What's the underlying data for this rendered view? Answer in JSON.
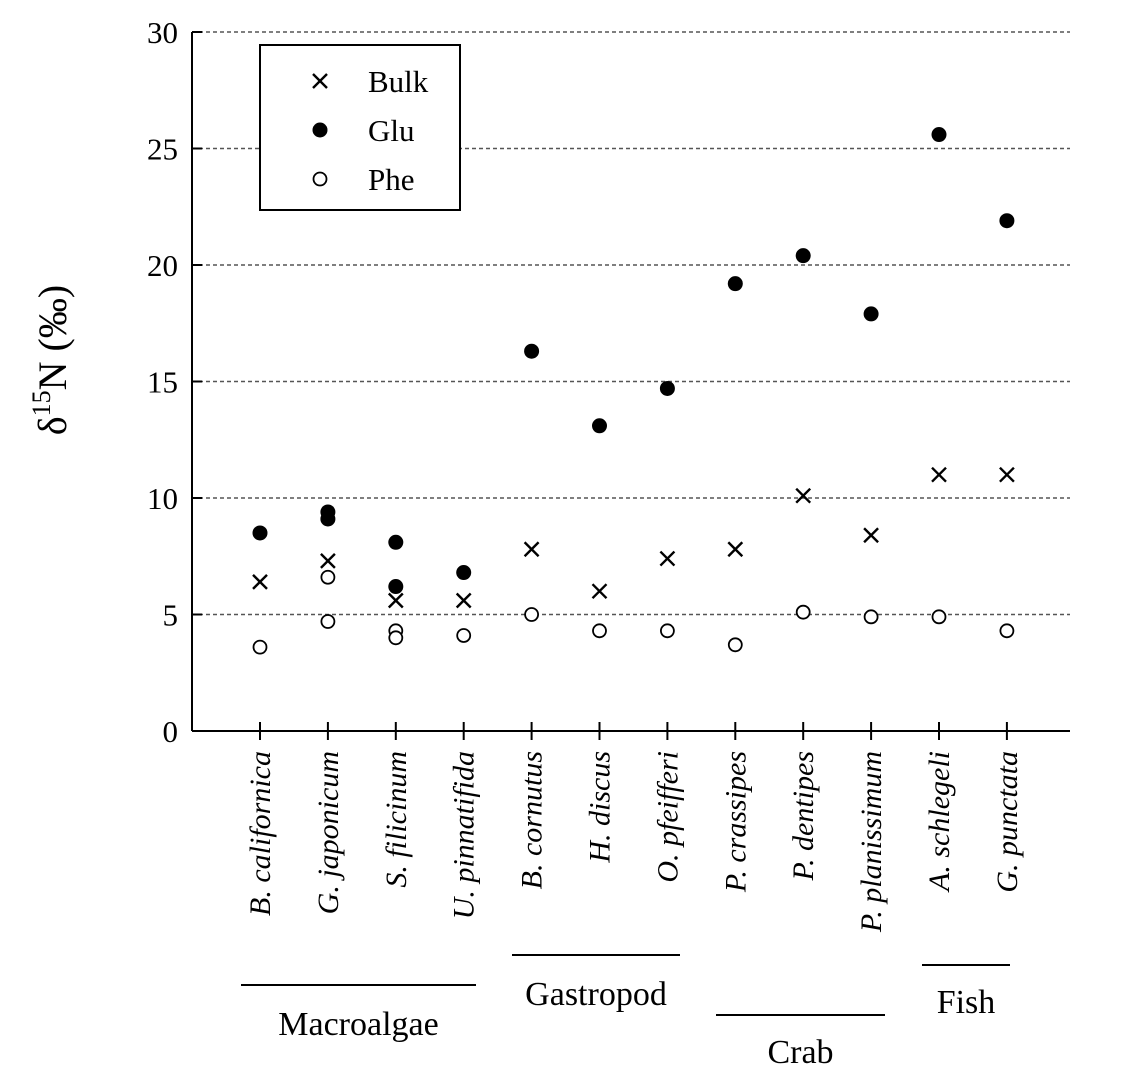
{
  "chart_data": {
    "type": "scatter",
    "ylabel": "δ15N (‰)",
    "ylabel_parts": {
      "base": "δ",
      "sup": "15",
      "rest": "N (‰)"
    },
    "ylim": [
      0,
      30
    ],
    "yticks": [
      0,
      5,
      10,
      15,
      20,
      25,
      30
    ],
    "grid": "horizontal dashed",
    "legend_position": "top-left",
    "categories": [
      "B. californica",
      "G. japonicum",
      "S. filicinum",
      "U. pinnatifida",
      "B. cornutus",
      "H. discus",
      "O. pfeifferi",
      "P. crassipes",
      "P. dentipes",
      "P. planissimum",
      "A. schlegeli",
      "G. punctata"
    ],
    "groups": [
      {
        "label": "Macroalgae",
        "from": 0,
        "to": 3
      },
      {
        "label": "Gastropod",
        "from": 4,
        "to": 6
      },
      {
        "label": "Crab",
        "from": 7,
        "to": 9
      },
      {
        "label": "Fish",
        "from": 10,
        "to": 11
      }
    ],
    "series": [
      {
        "name": "Bulk",
        "marker": "cross",
        "points": [
          [
            0,
            6.4
          ],
          [
            1,
            7.3
          ],
          [
            2,
            5.6
          ],
          [
            3,
            5.6
          ],
          [
            4,
            7.8
          ],
          [
            5,
            6.0
          ],
          [
            6,
            7.4
          ],
          [
            7,
            7.8
          ],
          [
            8,
            10.1
          ],
          [
            9,
            8.4
          ],
          [
            10,
            11.0
          ],
          [
            11,
            11.0
          ]
        ]
      },
      {
        "name": "Glu",
        "marker": "filled-circle",
        "points": [
          [
            0,
            8.5
          ],
          [
            1,
            9.4
          ],
          [
            1,
            9.1
          ],
          [
            2,
            8.1
          ],
          [
            2,
            6.2
          ],
          [
            3,
            6.8
          ],
          [
            4,
            16.3
          ],
          [
            5,
            13.1
          ],
          [
            6,
            14.7
          ],
          [
            7,
            19.2
          ],
          [
            8,
            20.4
          ],
          [
            9,
            17.9
          ],
          [
            10,
            25.6
          ],
          [
            11,
            21.9
          ]
        ]
      },
      {
        "name": "Phe",
        "marker": "open-circle",
        "points": [
          [
            0,
            3.6
          ],
          [
            1,
            6.6
          ],
          [
            1,
            4.7
          ],
          [
            2,
            4.3
          ],
          [
            2,
            4.0
          ],
          [
            3,
            4.1
          ],
          [
            4,
            5.0
          ],
          [
            5,
            4.3
          ],
          [
            6,
            4.3
          ],
          [
            7,
            3.7
          ],
          [
            8,
            5.1
          ],
          [
            9,
            4.9
          ],
          [
            10,
            4.9
          ],
          [
            11,
            4.3
          ]
        ]
      }
    ]
  }
}
